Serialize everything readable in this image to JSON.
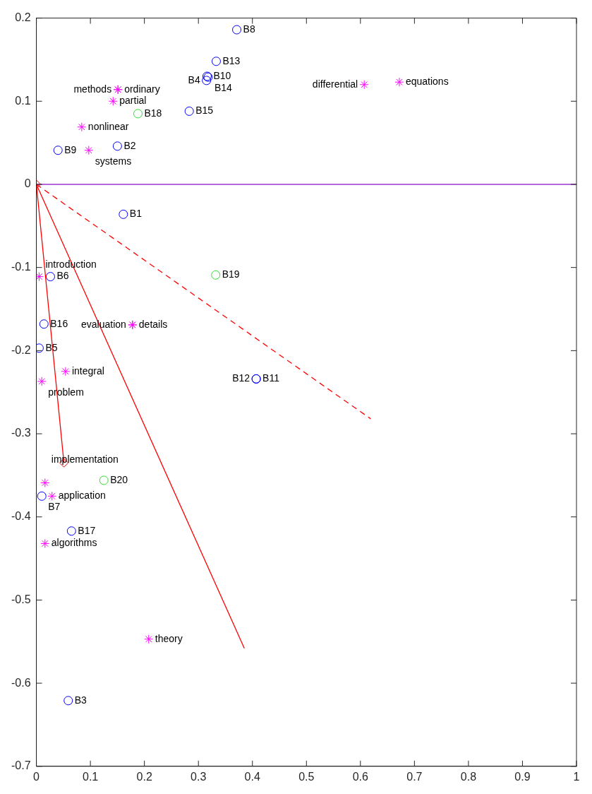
{
  "chart_data": {
    "type": "scatter",
    "xlim": [
      0,
      1
    ],
    "ylim": [
      -0.7,
      0.2
    ],
    "xticks": [
      0,
      0.1,
      0.2,
      0.3,
      0.4,
      0.5,
      0.6,
      0.7,
      0.8,
      0.9,
      1
    ],
    "yticks": [
      -0.7,
      -0.6,
      -0.5,
      -0.4,
      -0.3,
      -0.2,
      -0.1,
      0,
      0.1,
      0.2
    ],
    "grid": false,
    "legend": false,
    "ref_lines": [
      {
        "axis": "y",
        "value": 0,
        "color": "#9933cc"
      }
    ],
    "series": [
      {
        "type": "scatter",
        "marker": "circle",
        "color": "#0000ff",
        "x": [
          0.371,
          0.333,
          0.316,
          0.318,
          0.315,
          0.283,
          0.15,
          0.04,
          0.161,
          0.026,
          0.014,
          0.005,
          0.407,
          0.407,
          0.01,
          0.065,
          0.059
        ],
        "values": [
          0.186,
          0.148,
          0.13,
          0.129,
          0.125,
          0.088,
          0.046,
          0.041,
          -0.036,
          -0.111,
          -0.168,
          -0.197,
          -0.234,
          -0.234,
          -0.375,
          -0.417,
          -0.621
        ],
        "value_labels": [
          "B8",
          "B13",
          "B10",
          "B14",
          "B4",
          "B15",
          "B2",
          "B9",
          "B1",
          "B6",
          "B16",
          "B5",
          "B11",
          "B12",
          "B7",
          "B17",
          "B3"
        ]
      },
      {
        "type": "scatter",
        "marker": "circle",
        "color": "#33dd33",
        "x": [
          0.188,
          0.332,
          0.125
        ],
        "values": [
          0.085,
          -0.109,
          -0.356
        ],
        "value_labels": [
          "B18",
          "B19",
          "B20"
        ]
      },
      {
        "type": "scatter",
        "marker": "cross",
        "color": "#ff00ff",
        "x": [
          0.151,
          0.151,
          0.142,
          0.084,
          0.097,
          0.607,
          0.672,
          0.005,
          0.178,
          0.178,
          0.054,
          0.01,
          0.016,
          0.029,
          0.016,
          0.208
        ],
        "values": [
          0.114,
          0.114,
          0.1,
          0.069,
          0.041,
          0.12,
          0.123,
          -0.111,
          -0.169,
          -0.169,
          -0.225,
          -0.237,
          -0.359,
          -0.375,
          -0.432,
          -0.547
        ],
        "value_labels": [
          "ordinary",
          "methods",
          "partial",
          "nonlinear",
          "systems",
          "differential",
          "equations",
          "introduction",
          "details",
          "evaluation",
          "integral",
          "problem",
          "implementation",
          "application",
          "algorithms",
          "theory"
        ]
      },
      {
        "type": "line",
        "marker": "diamond",
        "line_style": "solid",
        "color": "#ff0000",
        "x": [
          0,
          0.051
        ],
        "values": [
          0,
          -0.335
        ]
      },
      {
        "type": "line",
        "marker": "none",
        "line_style": "solid",
        "color": "#ff0000",
        "x": [
          0,
          0.385
        ],
        "values": [
          0,
          -0.558
        ]
      },
      {
        "type": "line",
        "marker": "none",
        "line_style": "dashed",
        "color": "#ff0000",
        "x": [
          0,
          0.619
        ],
        "values": [
          0,
          -0.282
        ]
      }
    ]
  }
}
